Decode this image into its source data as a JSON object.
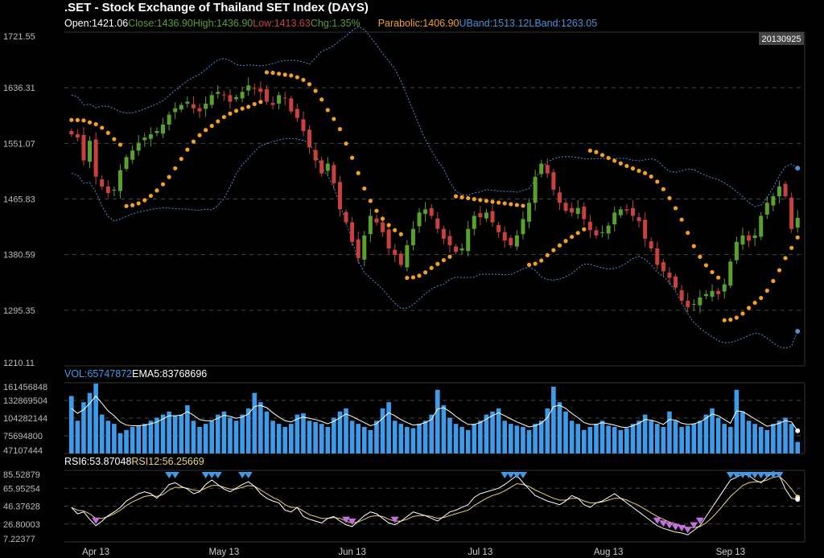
{
  "title": ".SET - Stock Exchange of Thailand SET Index (DAYS)",
  "info": {
    "open": "Open:1421.06",
    "close": "Close:1436.90",
    "high": "High:1436.90",
    "low": "Low:1413.63",
    "chg": "Chg:1.35%",
    "parabolic": "Parabolic:1406.90",
    "uband": "UBand:1513.12",
    "lband": "LBand:1263.05"
  },
  "vol_info": {
    "vol": "VOL:65747872",
    "ema": "EMA5:83768696"
  },
  "rsi_info": {
    "rsi6": "RSI6:53.87048",
    "rsi12": "RSI12:56.25669"
  },
  "selected_date": "20130925",
  "colors": {
    "up": "#5aa02c",
    "down": "#c9413f",
    "sar": "#f5a020",
    "band": "#4a90d9",
    "volume": "#3d9be9",
    "rsi6": "#ffffff",
    "rsi12": "#e8d37a",
    "marker_up": "#3d9be9",
    "marker_down": "#c36fe0"
  },
  "chart_data": [
    {
      "type": "candlestick",
      "title": ".SET - Stock Exchange of Thailand SET Index (DAYS)",
      "y_ticks": [
        "1721.55",
        "1636.31",
        "1551.07",
        "1465.83",
        "1380.59",
        "1295.35",
        "1210.11"
      ],
      "ylim": [
        1210.11,
        1721.55
      ],
      "x_ticks": [
        "Apr 13",
        "May 13",
        "Jun 13",
        "Jul 13",
        "Aug 13",
        "Sep 13"
      ],
      "series": [
        {
          "name": "Close",
          "values": [
            1565,
            1560,
            1525,
            1555,
            1500,
            1485,
            1475,
            1480,
            1510,
            1530,
            1540,
            1552,
            1560,
            1565,
            1570,
            1580,
            1595,
            1605,
            1610,
            1615,
            1605,
            1600,
            1612,
            1625,
            1630,
            1625,
            1615,
            1622,
            1630,
            1640,
            1635,
            1630,
            1615,
            1610,
            1625,
            1620,
            1600,
            1590,
            1570,
            1545,
            1525,
            1505,
            1520,
            1490,
            1450,
            1430,
            1400,
            1375,
            1410,
            1440,
            1430,
            1415,
            1390,
            1380,
            1365,
            1395,
            1420,
            1445,
            1450,
            1440,
            1420,
            1405,
            1395,
            1385,
            1390,
            1420,
            1440,
            1438,
            1445,
            1430,
            1415,
            1402,
            1395,
            1410,
            1435,
            1460,
            1500,
            1520,
            1505,
            1480,
            1460,
            1448,
            1445,
            1452,
            1435,
            1418,
            1410,
            1415,
            1425,
            1445,
            1450,
            1448,
            1440,
            1432,
            1405,
            1390,
            1365,
            1355,
            1345,
            1330,
            1310,
            1300,
            1305,
            1315,
            1320,
            1325,
            1320,
            1335,
            1370,
            1400,
            1410,
            1402,
            1410,
            1440,
            1460,
            1470,
            1485,
            1470,
            1420,
            1436.9
          ]
        }
      ],
      "sar_last": 1406.9,
      "band_upper_last": 1513.12,
      "band_lower_last": 1263.05
    },
    {
      "type": "bar",
      "title": "VOL",
      "y_ticks": [
        "161456848",
        "132869504",
        "104282144",
        "75694800",
        "47107444"
      ],
      "ylim": [
        47107444,
        161456848
      ],
      "series": [
        {
          "name": "VOL",
          "values": [
            140,
            100,
            130,
            145,
            160,
            110,
            100,
            95,
            80,
            85,
            90,
            92,
            95,
            100,
            105,
            110,
            115,
            108,
            110,
            125,
            100,
            90,
            95,
            100,
            110,
            115,
            105,
            100,
            110,
            120,
            145,
            130,
            115,
            100,
            95,
            90,
            95,
            110,
            112,
            100,
            98,
            95,
            90,
            105,
            115,
            120,
            100,
            95,
            90,
            85,
            100,
            120,
            130,
            100,
            95,
            90,
            88,
            95,
            100,
            110,
            150,
            125,
            105,
            95,
            90,
            85,
            95,
            100,
            110,
            115,
            120,
            100,
            95,
            92,
            90,
            85,
            95,
            100,
            120,
            155,
            130,
            115,
            100,
            95,
            85,
            90,
            95,
            100,
            92,
            90,
            85,
            88,
            95,
            100,
            110,
            100,
            95,
            90,
            115,
            100,
            90,
            92,
            95,
            100,
            110,
            120,
            105,
            95,
            90,
            150,
            115,
            100,
            95,
            90,
            85,
            95,
            100,
            105,
            95,
            65.75
          ]
        },
        {
          "name": "EMA5",
          "values": [
            120,
            112,
            118,
            128,
            140,
            128,
            116,
            108,
            98,
            93,
            92,
            92,
            93,
            95,
            98,
            103,
            108,
            108,
            109,
            115,
            109,
            102,
            100,
            100,
            104,
            109,
            107,
            104,
            106,
            111,
            123,
            125,
            121,
            113,
            106,
            100,
            98,
            103,
            106,
            104,
            102,
            99,
            95,
            99,
            105,
            111,
            107,
            102,
            97,
            92,
            95,
            104,
            113,
            108,
            102,
            97,
            93,
            94,
            97,
            102,
            119,
            121,
            115,
            107,
            100,
            94,
            94,
            97,
            103,
            108,
            113,
            108,
            103,
            98,
            94,
            90,
            92,
            96,
            105,
            123,
            125,
            120,
            112,
            105,
            97,
            94,
            94,
            97,
            95,
            93,
            90,
            89,
            92,
            96,
            102,
            101,
            98,
            94,
            102,
            101,
            96,
            94,
            95,
            98,
            104,
            111,
            108,
            102,
            96,
            116,
            115,
            109,
            103,
            97,
            91,
            93,
            96,
            100,
            98,
            83.77
          ]
        }
      ]
    },
    {
      "type": "line",
      "title": "RSI",
      "y_ticks": [
        "85.52879",
        "65.95254",
        "46.37628",
        "26.80003",
        "7.22377"
      ],
      "ylim": [
        7.22377,
        85.52879
      ],
      "series": [
        {
          "name": "RSI6",
          "values": [
            45,
            38,
            40,
            32,
            25,
            30,
            36,
            40,
            45,
            52,
            56,
            60,
            62,
            60,
            55,
            62,
            70,
            72,
            68,
            65,
            60,
            62,
            70,
            75,
            70,
            65,
            62,
            66,
            70,
            73,
            68,
            60,
            55,
            52,
            50,
            42,
            40,
            45,
            35,
            32,
            30,
            28,
            33,
            35,
            30,
            26,
            24,
            30,
            36,
            40,
            38,
            33,
            28,
            26,
            30,
            35,
            40,
            38,
            36,
            33,
            30,
            35,
            40,
            42,
            45,
            48,
            56,
            60,
            62,
            64,
            66,
            70,
            75,
            80,
            72,
            65,
            58,
            55,
            52,
            50,
            48,
            52,
            58,
            55,
            48,
            45,
            50,
            52,
            56,
            60,
            55,
            50,
            45,
            40,
            35,
            30,
            25,
            22,
            20,
            18,
            17,
            15,
            20,
            25,
            35,
            45,
            55,
            65,
            75,
            78,
            82,
            80,
            75,
            72,
            78,
            84,
            80,
            65,
            55,
            53.87
          ]
        },
        {
          "name": "RSI12",
          "values": [
            45,
            42,
            41,
            38,
            33,
            33,
            35,
            38,
            42,
            47,
            51,
            54,
            57,
            58,
            57,
            59,
            64,
            67,
            67,
            66,
            64,
            63,
            66,
            69,
            69,
            67,
            65,
            65,
            67,
            69,
            68,
            64,
            60,
            56,
            53,
            48,
            45,
            45,
            41,
            37,
            35,
            33,
            33,
            34,
            33,
            30,
            28,
            29,
            32,
            35,
            36,
            35,
            32,
            30,
            30,
            32,
            35,
            36,
            36,
            35,
            33,
            34,
            36,
            38,
            40,
            42,
            47,
            51,
            55,
            58,
            60,
            63,
            67,
            71,
            70,
            68,
            64,
            61,
            58,
            55,
            53,
            53,
            55,
            55,
            52,
            50,
            50,
            51,
            53,
            55,
            55,
            53,
            50,
            47,
            43,
            39,
            35,
            32,
            29,
            27,
            25,
            23,
            23,
            24,
            28,
            34,
            41,
            49,
            57,
            63,
            69,
            72,
            73,
            73,
            75,
            78,
            79,
            73,
            65,
            56.26
          ]
        }
      ]
    }
  ]
}
